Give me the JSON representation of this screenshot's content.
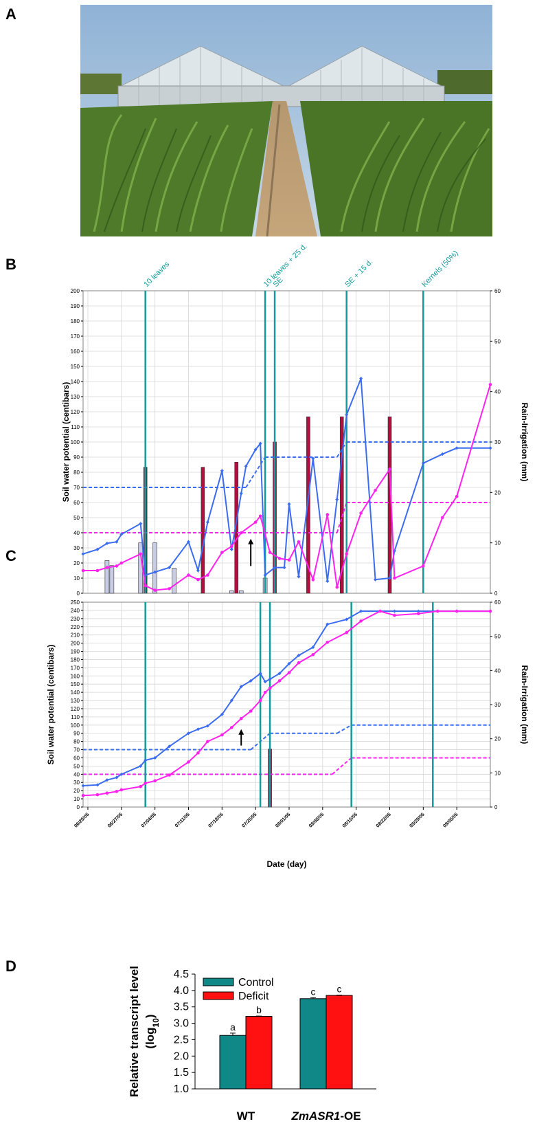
{
  "panels": {
    "A": "A",
    "B": "B",
    "C": "C",
    "D": "D"
  },
  "colors": {
    "wt": "#3b6cf0",
    "oe": "#ff22ee",
    "event": "#139a9a",
    "rain": "#b01040",
    "control_bar": "#118888",
    "deficit_bar": "#ff1111"
  },
  "photo": {
    "description_icon": "greenhouse-maize-field-photo"
  },
  "chart_data": [
    {
      "type": "line",
      "panel": "B",
      "ylabel": "Soil water potential (centibars)",
      "y2label": "Rain-Irrigation (mm)",
      "ylim": [
        0,
        200
      ],
      "y2lim": [
        0,
        60
      ],
      "yticks": [
        0,
        10,
        20,
        30,
        40,
        50,
        60,
        70,
        80,
        90,
        100,
        110,
        120,
        130,
        140,
        150,
        160,
        170,
        180,
        190,
        200
      ],
      "y2ticks": [
        0,
        10,
        20,
        30,
        40,
        50,
        60
      ],
      "x_range": [
        "06/19/05",
        "09/12/05"
      ],
      "events": [
        {
          "label": "10 leaves",
          "x": "07/02/05"
        },
        {
          "label": "10 leaves + 25 d.",
          "x": "07/27/05"
        },
        {
          "label": "SE",
          "x": "07/29/05"
        },
        {
          "label": "SE + 15 d.",
          "x": "08/13/05"
        },
        {
          "label": "Kernels (50%)",
          "x": "08/29/05"
        }
      ],
      "series": [
        {
          "role": "wt",
          "x": [
            "06/19/05",
            "06/22/05",
            "06/24/05",
            "06/26/05",
            "06/27/05",
            "07/01/05",
            "07/02/05",
            "07/04/05",
            "07/07/05",
            "07/11/05",
            "07/13/05",
            "07/15/05",
            "07/18/05",
            "07/20/05",
            "07/22/05",
            "07/23/05",
            "07/25/05",
            "07/26/05",
            "07/27/05",
            "07/29/05",
            "07/31/05",
            "08/01/05",
            "08/03/05",
            "08/06/05",
            "08/09/05",
            "08/11/05",
            "08/13/05",
            "08/16/05",
            "08/19/05",
            "08/22/05",
            "08/23/05",
            "08/29/05",
            "09/02/05",
            "09/05/05",
            "09/12/05"
          ],
          "y": [
            26,
            29,
            33,
            34,
            39,
            46,
            12,
            14,
            17,
            34,
            15,
            47,
            81,
            29,
            66,
            84,
            95,
            99,
            12,
            17,
            17,
            59,
            11,
            89,
            8,
            62,
            118,
            142,
            9,
            10,
            28,
            86,
            92,
            96,
            96
          ]
        },
        {
          "role": "oe",
          "x": [
            "06/19/05",
            "06/22/05",
            "06/24/05",
            "06/26/05",
            "06/27/05",
            "07/01/05",
            "07/02/05",
            "07/04/05",
            "07/07/05",
            "07/11/05",
            "07/13/05",
            "07/15/05",
            "07/18/05",
            "07/20/05",
            "07/22/05",
            "07/25/05",
            "07/26/05",
            "07/28/05",
            "07/30/05",
            "08/01/05",
            "08/03/05",
            "08/06/05",
            "08/09/05",
            "08/11/05",
            "08/13/05",
            "08/16/05",
            "08/19/05",
            "08/22/05",
            "08/23/05",
            "08/29/05",
            "09/02/05",
            "09/05/05",
            "09/12/05"
          ],
          "y": [
            15,
            15,
            17,
            18,
            20,
            26,
            5,
            2,
            3,
            12,
            9,
            12,
            27,
            31,
            40,
            47,
            51,
            27,
            23,
            22,
            34,
            9,
            52,
            4,
            26,
            53,
            68,
            82,
            10,
            18,
            50,
            64,
            138
          ]
        },
        {
          "role": "wt-threshold",
          "segments": [
            {
              "x": [
                "06/19/05",
                "07/23/05"
              ],
              "y": [
                70,
                70
              ]
            },
            {
              "x": [
                "07/23/05",
                "07/27/05"
              ],
              "y": [
                70,
                90
              ]
            },
            {
              "x": [
                "07/27/05",
                "08/11/05"
              ],
              "y": [
                90,
                90
              ]
            },
            {
              "x": [
                "08/11/05",
                "08/13/05"
              ],
              "y": [
                90,
                100
              ]
            },
            {
              "x": [
                "08/13/05",
                "09/12/05"
              ],
              "y": [
                100,
                100
              ]
            }
          ]
        },
        {
          "role": "oe-threshold",
          "segments": [
            {
              "x": [
                "06/19/05",
                "08/11/05"
              ],
              "y": [
                40,
                40
              ]
            },
            {
              "x": [
                "08/11/05",
                "08/13/05"
              ],
              "y": [
                40,
                60
              ]
            },
            {
              "x": [
                "08/13/05",
                "09/12/05"
              ],
              "y": [
                60,
                60
              ]
            }
          ]
        }
      ],
      "rain_bars": {
        "x": [
          "07/02/05",
          "07/14/05",
          "07/21/05",
          "07/29/05",
          "08/05/05",
          "08/12/05",
          "08/22/05"
        ],
        "values": [
          25,
          25,
          26,
          30,
          35,
          35,
          35
        ]
      },
      "irrigation_bars": {
        "x": [
          "06/24/05",
          "06/25/05",
          "07/01/05",
          "07/04/05",
          "07/08/05",
          "07/20/05",
          "07/22/05",
          "07/27/05"
        ],
        "values": [
          6.5,
          5.5,
          10,
          10,
          5,
          0.5,
          0.5,
          3
        ]
      },
      "arrow": {
        "x": "07/24/05",
        "y": [
          18,
          36
        ]
      }
    },
    {
      "type": "line",
      "panel": "C",
      "ylabel": "Soil water potential (centibars)",
      "y2label": "Rain-Irrigation (mm)",
      "xlabel": "Date (day)",
      "ylim": [
        0,
        250
      ],
      "y2lim": [
        0,
        60
      ],
      "yticks": [
        0,
        10,
        20,
        30,
        40,
        50,
        60,
        70,
        80,
        90,
        100,
        110,
        120,
        130,
        140,
        150,
        160,
        170,
        180,
        190,
        200,
        210,
        220,
        230,
        240,
        250
      ],
      "y2ticks": [
        0,
        10,
        20,
        30,
        40,
        50,
        60
      ],
      "x_range": [
        "06/19/05",
        "09/12/05"
      ],
      "xticks": [
        "06/20/05",
        "06/27/05",
        "07/04/05",
        "07/11/05",
        "07/18/05",
        "07/25/05",
        "08/01/05",
        "08/08/05",
        "08/15/05",
        "08/22/05",
        "08/29/05",
        "09/05/05"
      ],
      "events_x": [
        "07/02/05",
        "07/26/05",
        "07/28/05",
        "08/14/05",
        "08/31/05"
      ],
      "series": [
        {
          "role": "wt",
          "x": [
            "06/19/05",
            "06/22/05",
            "06/24/05",
            "06/26/05",
            "06/27/05",
            "07/01/05",
            "07/02/05",
            "07/04/05",
            "07/07/05",
            "07/11/05",
            "07/13/05",
            "07/15/05",
            "07/18/05",
            "07/20/05",
            "07/22/05",
            "07/24/05",
            "07/26/05",
            "07/27/05",
            "07/28/05",
            "07/30/05",
            "08/01/05",
            "08/03/05",
            "08/06/05",
            "08/09/05",
            "08/13/05",
            "08/16/05",
            "08/20/05",
            "08/23/05",
            "08/28/05",
            "09/01/05",
            "09/05/05",
            "09/12/05"
          ],
          "y": [
            26,
            27,
            33,
            36,
            40,
            50,
            57,
            60,
            74,
            90,
            95,
            99,
            113,
            130,
            147,
            154,
            163,
            153,
            156,
            163,
            175,
            185,
            195,
            223,
            229,
            239,
            239,
            239,
            239,
            239,
            239,
            239
          ]
        },
        {
          "role": "oe",
          "x": [
            "06/19/05",
            "06/22/05",
            "06/24/05",
            "06/26/05",
            "06/27/05",
            "07/01/05",
            "07/02/05",
            "07/04/05",
            "07/07/05",
            "07/11/05",
            "07/13/05",
            "07/15/05",
            "07/18/05",
            "07/20/05",
            "07/22/05",
            "07/24/05",
            "07/26/05",
            "07/27/05",
            "07/28/05",
            "07/30/05",
            "08/01/05",
            "08/03/05",
            "08/06/05",
            "08/09/05",
            "08/13/05",
            "08/16/05",
            "08/20/05",
            "08/23/05",
            "08/28/05",
            "09/01/05",
            "09/05/05",
            "09/12/05"
          ],
          "y": [
            14,
            15,
            17,
            19,
            21,
            25,
            29,
            32,
            39,
            55,
            66,
            80,
            88,
            97,
            108,
            117,
            130,
            140,
            145,
            154,
            164,
            176,
            186,
            201,
            213,
            227,
            239,
            234,
            236,
            239,
            239,
            239
          ]
        },
        {
          "role": "wt-threshold",
          "segments": [
            {
              "x": [
                "06/19/05",
                "07/24/05"
              ],
              "y": [
                70,
                70
              ]
            },
            {
              "x": [
                "07/24/05",
                "07/28/05"
              ],
              "y": [
                70,
                90
              ]
            },
            {
              "x": [
                "07/28/05",
                "08/11/05"
              ],
              "y": [
                90,
                90
              ]
            },
            {
              "x": [
                "08/11/05",
                "08/14/05"
              ],
              "y": [
                90,
                100
              ]
            },
            {
              "x": [
                "08/14/05",
                "09/12/05"
              ],
              "y": [
                100,
                100
              ]
            }
          ]
        },
        {
          "role": "oe-threshold",
          "segments": [
            {
              "x": [
                "06/19/05",
                "08/10/05"
              ],
              "y": [
                40,
                40
              ]
            },
            {
              "x": [
                "08/10/05",
                "08/14/05"
              ],
              "y": [
                40,
                60
              ]
            },
            {
              "x": [
                "08/14/05",
                "09/12/05"
              ],
              "y": [
                60,
                60
              ]
            }
          ]
        }
      ],
      "rain_bars": {
        "x": [
          "07/28/05"
        ],
        "values": [
          17
        ]
      },
      "arrow": {
        "x": "07/22/05",
        "y": [
          75,
          95
        ]
      }
    },
    {
      "type": "bar",
      "panel": "D",
      "ylabel": "Relative transcript level",
      "ylabel_unit_prefix": "(log",
      "ylabel_unit_sub": "10",
      "ylabel_unit_suffix": ")",
      "ylim": [
        1.0,
        4.5
      ],
      "yticks": [
        "1.0",
        "1.5",
        "2.0",
        "2.5",
        "3.0",
        "3.5",
        "4.0",
        "4.5"
      ],
      "categories": [
        "WT",
        "ZmASR1-OE"
      ],
      "category_italic_part": [
        "",
        "ZmASR1"
      ],
      "category_plain_part": [
        "WT",
        "-OE"
      ],
      "series": [
        {
          "name": "Control",
          "values": [
            2.63,
            3.75
          ],
          "err": [
            0.07,
            0.03
          ],
          "labels": [
            "a",
            "c"
          ]
        },
        {
          "name": "Deficit",
          "values": [
            3.21,
            3.85
          ],
          "err": [
            0.01,
            0.01
          ],
          "labels": [
            "b",
            "c"
          ]
        }
      ],
      "legend": "top-left"
    }
  ]
}
